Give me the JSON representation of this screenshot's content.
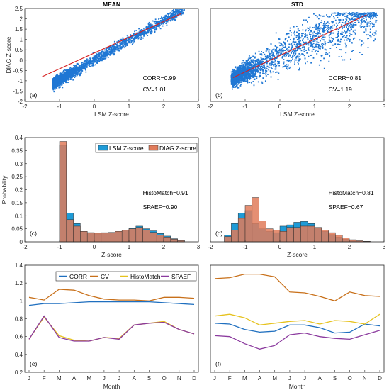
{
  "chart_data": [
    {
      "id": "a",
      "type": "scatter",
      "title": "MEAN",
      "panel_label": "(a)",
      "xlabel": "LSM Z-score",
      "ylabel": "DIAG Z-score",
      "xlim": [
        -2,
        3
      ],
      "ylim": [
        -2,
        2.5
      ],
      "xticks": [
        "-2",
        "-1",
        "0",
        "1",
        "2",
        "3"
      ],
      "yticks": [
        "-2",
        "-1.5",
        "-1",
        "-0.5",
        "0",
        "0.5",
        "1",
        "1.5",
        "2",
        "2.5"
      ],
      "fit_line": [
        [
          -1.5,
          -0.8
        ],
        [
          2.5,
          2.25
        ]
      ],
      "point_color": "#1f77d4",
      "fit_color": "#d62020",
      "cloud": {
        "x_range": [
          -1.2,
          2.6
        ],
        "slope": 0.96,
        "intercept": 0.0,
        "spread": 0.12
      },
      "annotations": [
        "CORR=0.99",
        "CV=1.01"
      ]
    },
    {
      "id": "b",
      "type": "scatter",
      "title": "STD",
      "panel_label": "(b)",
      "xlabel": "LSM Z-score",
      "ylabel": "",
      "xlim": [
        -2,
        3
      ],
      "ylim": [
        -2,
        2.5
      ],
      "xticks": [
        "-2",
        "-1",
        "0",
        "1",
        "2",
        "3"
      ],
      "yticks": [],
      "fit_line": [
        [
          -1.35,
          -0.85
        ],
        [
          2.5,
          2.2
        ]
      ],
      "point_color": "#1f77d4",
      "fit_color": "#d62020",
      "cloud": {
        "x_range": [
          -1.4,
          2.8
        ],
        "slope": 0.79,
        "intercept": 0.2,
        "spread": 0.55
      },
      "annotations": [
        "CORR=0.81",
        "CV=1.19"
      ]
    },
    {
      "id": "c",
      "type": "bar",
      "title": "",
      "panel_label": "(c)",
      "xlabel": "Z-score",
      "ylabel": "Probability",
      "xlim": [
        -2,
        3
      ],
      "ylim": [
        0,
        0.4
      ],
      "xticks": [
        "-2",
        "-1",
        "0",
        "1",
        "2",
        "3"
      ],
      "yticks": [
        "0",
        "0.05",
        "0.1",
        "0.15",
        "0.2",
        "0.25",
        "0.3",
        "0.35",
        "0.4"
      ],
      "bin_start": -1.0,
      "bin_width": 0.2,
      "series": [
        {
          "name": "LSM Z-score",
          "color": "#1e9bd7",
          "values": [
            0.37,
            0.11,
            0.07,
            0.04,
            0.035,
            0.03,
            0.033,
            0.035,
            0.038,
            0.045,
            0.052,
            0.06,
            0.05,
            0.042,
            0.032,
            0.022,
            0.012,
            0.006
          ]
        },
        {
          "name": "DIAG Z-score",
          "color": "#e07b5a",
          "values": [
            0.385,
            0.085,
            0.06,
            0.04,
            0.035,
            0.033,
            0.035,
            0.036,
            0.04,
            0.045,
            0.05,
            0.055,
            0.046,
            0.036,
            0.026,
            0.018,
            0.01,
            0.005
          ]
        }
      ],
      "annotations": [
        "HistoMatch=0.91",
        "SPAEF=0.90"
      ]
    },
    {
      "id": "d",
      "type": "bar",
      "title": "",
      "panel_label": "(d)",
      "xlabel": "Z-score",
      "ylabel": "",
      "xlim": [
        -2,
        3
      ],
      "ylim": [
        0,
        0.4
      ],
      "xticks": [
        "-2",
        "-1",
        "0",
        "1",
        "2",
        "3"
      ],
      "yticks": [],
      "bin_start": -1.6,
      "bin_width": 0.2,
      "series": [
        {
          "name": "LSM Z-score",
          "color": "#1e9bd7",
          "values": [
            0.025,
            0.07,
            0.11,
            0.12,
            0.07,
            0.05,
            0.04,
            0.035,
            0.06,
            0.065,
            0.075,
            0.078,
            0.07,
            0.055,
            0.04,
            0.028,
            0.018,
            0.01,
            0.005,
            0.003,
            0.002
          ]
        },
        {
          "name": "DIAG Z-score",
          "color": "#e07b5a",
          "values": [
            0.02,
            0.045,
            0.09,
            0.14,
            0.17,
            0.08,
            0.05,
            0.045,
            0.04,
            0.055,
            0.055,
            0.06,
            0.06,
            0.055,
            0.045,
            0.035,
            0.025,
            0.015,
            0.008,
            0.004,
            0.002
          ]
        }
      ],
      "annotations": [
        "HistoMatch=0.81",
        "SPAEF=0.67"
      ]
    },
    {
      "id": "e",
      "type": "line",
      "title": "",
      "panel_label": "(e)",
      "xlabel": "Month",
      "ylabel": "",
      "categories": [
        "J",
        "F",
        "M",
        "A",
        "M",
        "J",
        "J",
        "A",
        "S",
        "O",
        "N",
        "D"
      ],
      "ylim": [
        0.2,
        1.4
      ],
      "yticks": [
        "0.2",
        "0.4",
        "0.6",
        "0.8",
        "1",
        "1.2",
        "1.4"
      ],
      "series": [
        {
          "name": "CORR",
          "color": "#1f6fbf",
          "values": [
            0.95,
            0.97,
            0.97,
            0.98,
            0.99,
            0.99,
            0.99,
            0.99,
            0.99,
            0.98,
            0.97,
            0.96
          ]
        },
        {
          "name": "CV",
          "color": "#c8701a",
          "values": [
            1.04,
            1.01,
            1.13,
            1.12,
            1.06,
            1.02,
            1.01,
            1.01,
            1.0,
            1.04,
            1.04,
            1.03
          ]
        },
        {
          "name": "HistoMatch",
          "color": "#e6c21e",
          "values": [
            0.57,
            0.82,
            0.61,
            0.56,
            0.55,
            0.59,
            0.58,
            0.73,
            0.75,
            0.77,
            0.68,
            0.63
          ]
        },
        {
          "name": "SPAEF",
          "color": "#8b3a9e",
          "values": [
            0.57,
            0.83,
            0.59,
            0.55,
            0.55,
            0.59,
            0.57,
            0.73,
            0.75,
            0.76,
            0.68,
            0.63
          ]
        }
      ]
    },
    {
      "id": "f",
      "type": "line",
      "title": "",
      "panel_label": "(f)",
      "xlabel": "Month",
      "ylabel": "",
      "categories": [
        "J",
        "F",
        "M",
        "A",
        "M",
        "J",
        "J",
        "A",
        "S",
        "O",
        "N",
        "D"
      ],
      "ylim": [
        0.2,
        1.4
      ],
      "yticks": [],
      "series": [
        {
          "name": "CORR",
          "color": "#1f6fbf",
          "values": [
            0.75,
            0.74,
            0.68,
            0.65,
            0.66,
            0.73,
            0.73,
            0.7,
            0.64,
            0.65,
            0.74,
            0.72
          ]
        },
        {
          "name": "CV",
          "color": "#c8701a",
          "values": [
            1.25,
            1.26,
            1.3,
            1.3,
            1.27,
            1.1,
            1.09,
            1.05,
            1.0,
            1.1,
            1.06,
            1.05
          ]
        },
        {
          "name": "HistoMatch",
          "color": "#e6c21e",
          "values": [
            0.83,
            0.85,
            0.81,
            0.73,
            0.75,
            0.77,
            0.78,
            0.74,
            0.78,
            0.77,
            0.74,
            0.85
          ]
        },
        {
          "name": "SPAEF",
          "color": "#8b3a9e",
          "values": [
            0.61,
            0.6,
            0.52,
            0.46,
            0.5,
            0.62,
            0.64,
            0.6,
            0.58,
            0.57,
            0.62,
            0.67
          ]
        }
      ]
    }
  ]
}
